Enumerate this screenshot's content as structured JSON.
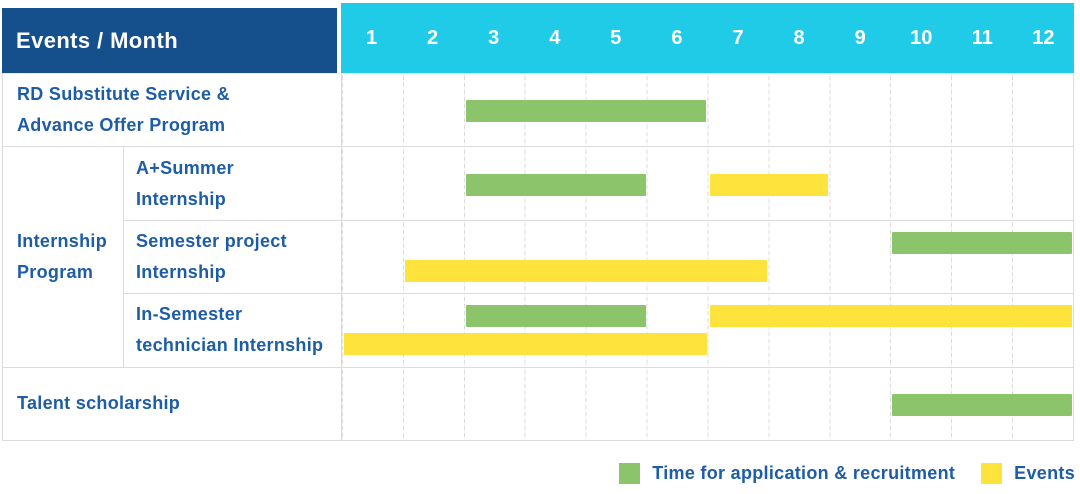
{
  "header": {
    "title": "Events / Month",
    "months": [
      "1",
      "2",
      "3",
      "4",
      "5",
      "6",
      "7",
      "8",
      "9",
      "10",
      "11",
      "12"
    ]
  },
  "rows": [
    {
      "label_line1": "RD Substitute Service &",
      "label_line2": "Advance Offer Program"
    },
    {
      "group_line1": "Internship",
      "group_line2": "Program",
      "label_line1": "A+Summer",
      "label_line2": "Internship"
    },
    {
      "label_line1": "Semester project",
      "label_line2": "Internship"
    },
    {
      "label_line1": "In-Semester",
      "label_line2": "technician Internship"
    },
    {
      "label_line1": "Talent scholarship"
    }
  ],
  "legend": {
    "application": {
      "label": "Time for application & recruitment",
      "color": "#8BC46A"
    },
    "events": {
      "label": "Events",
      "color": "#FFE33D"
    }
  },
  "colors": {
    "header_bg": "#15508C",
    "months_bg": "#20CBE8",
    "label_text": "#1D5CA7",
    "bar_green": "#8BC46A",
    "bar_yellow": "#FFE33D",
    "grid_line": "#DCDCDC"
  },
  "chart_data": {
    "type": "gantt",
    "unit": "month",
    "x_range": [
      1,
      12
    ],
    "title": "Events / Month",
    "legend_entries": [
      {
        "kind": "application",
        "label": "Time for application & recruitment",
        "color": "#8BC46A"
      },
      {
        "kind": "events",
        "label": "Events",
        "color": "#FFE33D"
      }
    ],
    "rows": [
      {
        "name": "RD Substitute Service & Advance Offer Program",
        "group": "",
        "lines": 1,
        "segments": [
          {
            "kind": "application",
            "start_month": 3,
            "end_month": 6,
            "line": 0
          }
        ]
      },
      {
        "name": "A+Summer Internship",
        "group": "Internship Program",
        "lines": 1,
        "segments": [
          {
            "kind": "application",
            "start_month": 3,
            "end_month": 5,
            "line": 0
          },
          {
            "kind": "events",
            "start_month": 7,
            "end_month": 8,
            "line": 0
          }
        ]
      },
      {
        "name": "Semester project Internship",
        "group": "Internship Program",
        "lines": 2,
        "segments": [
          {
            "kind": "application",
            "start_month": 10,
            "end_month": 12,
            "line": 0
          },
          {
            "kind": "events",
            "start_month": 2,
            "end_month": 7,
            "line": 1
          }
        ]
      },
      {
        "name": "In-Semester technician Internship",
        "group": "Internship Program",
        "lines": 2,
        "segments": [
          {
            "kind": "application",
            "start_month": 3,
            "end_month": 5,
            "line": 0
          },
          {
            "kind": "events",
            "start_month": 7,
            "end_month": 12,
            "line": 0
          },
          {
            "kind": "events",
            "start_month": 1,
            "end_month": 6,
            "line": 1
          }
        ]
      },
      {
        "name": "Talent scholarship",
        "group": "",
        "lines": 1,
        "segments": [
          {
            "kind": "application",
            "start_month": 10,
            "end_month": 12,
            "line": 0
          }
        ]
      }
    ]
  }
}
